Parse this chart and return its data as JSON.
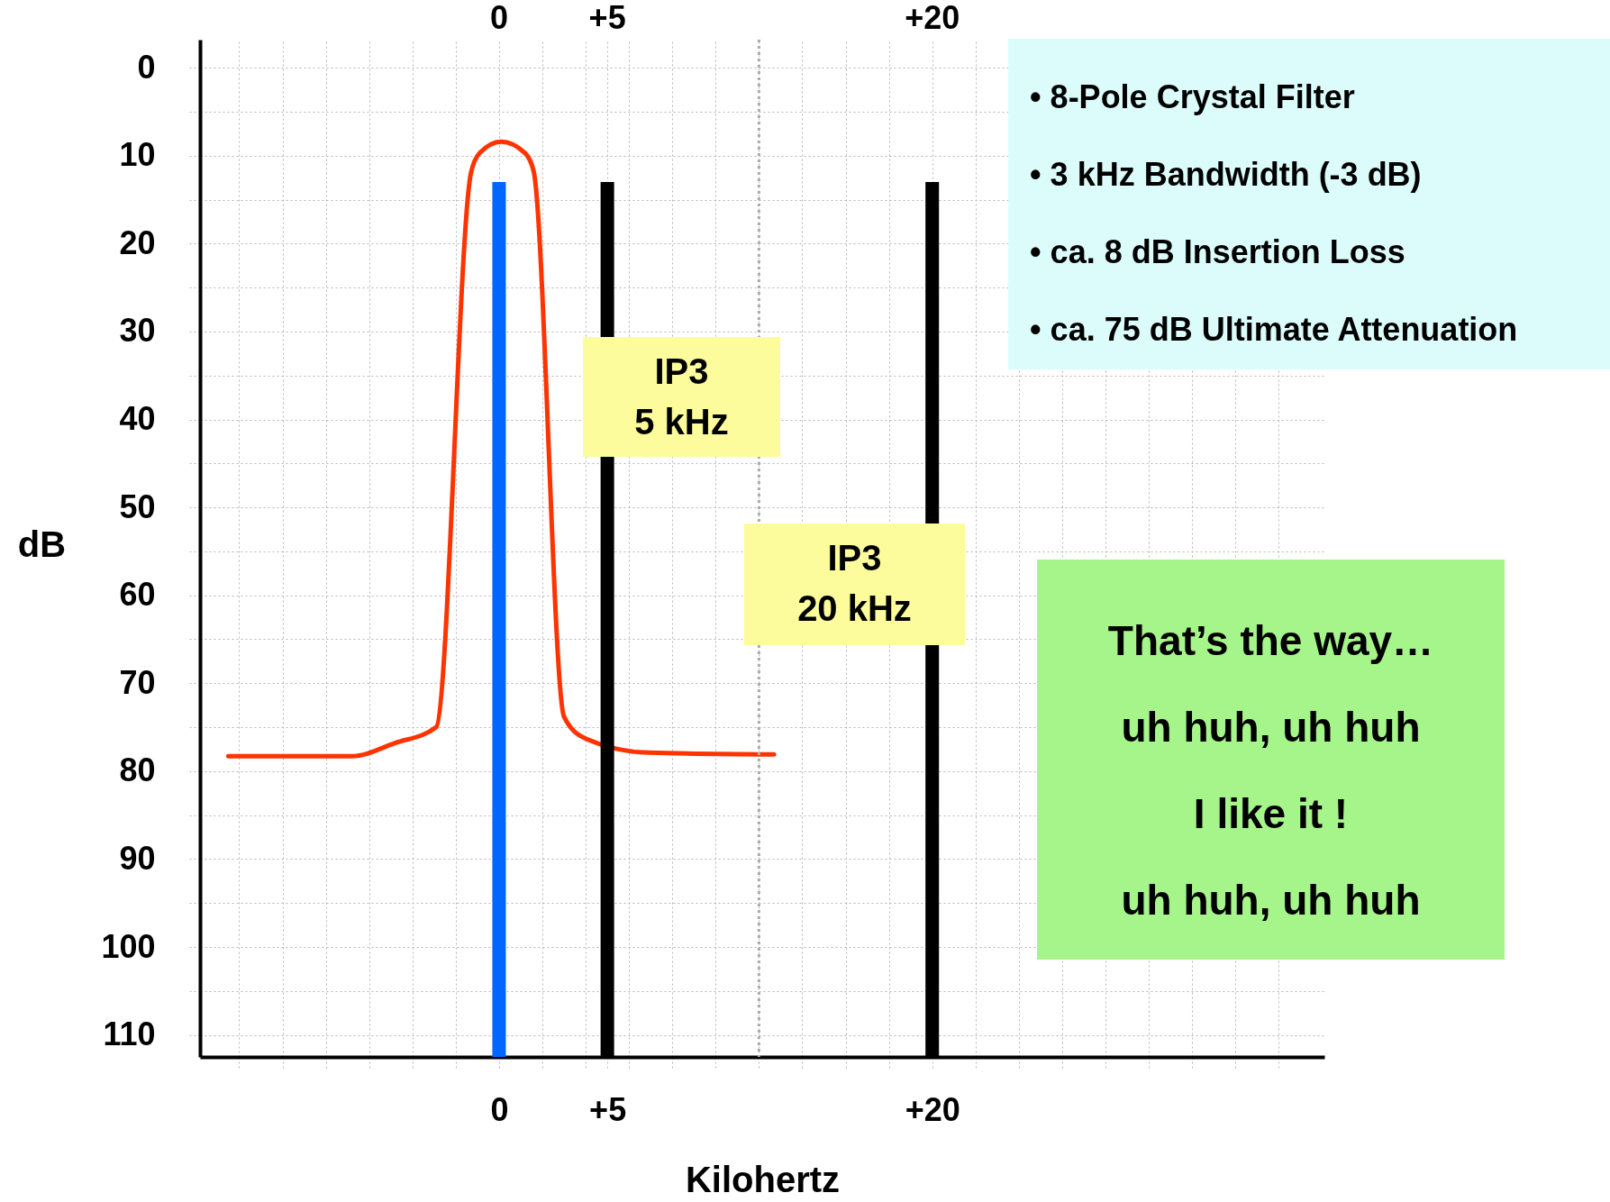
{
  "chart_data": {
    "type": "line",
    "xlabel": "Kilohertz",
    "ylabel": "dB",
    "xlim": [
      -13.6,
      37.9
    ],
    "xticks": [
      {
        "value": -12,
        "label": null
      },
      {
        "value": -10,
        "label": null
      },
      {
        "value": -8,
        "label": null
      },
      {
        "value": -6,
        "label": null
      },
      {
        "value": -4,
        "label": null
      },
      {
        "value": -2,
        "label": null
      },
      0,
      {
        "value": 2,
        "label": null
      },
      {
        "value": 4,
        "label": null
      },
      {
        "value": 5,
        "label": "+5"
      },
      {
        "value": 6,
        "label": null
      },
      {
        "value": 8,
        "label": null
      },
      {
        "value": 10,
        "label": null
      },
      {
        "value": 12,
        "label": null
      },
      {
        "value": 14,
        "label": null
      },
      {
        "value": 16,
        "label": null
      },
      {
        "value": 18,
        "label": null
      },
      {
        "value": 20,
        "label": "+20"
      },
      {
        "value": 22,
        "label": null
      },
      {
        "value": 24,
        "label": null
      },
      {
        "value": 26,
        "label": null
      },
      {
        "value": 28,
        "label": null
      },
      {
        "value": 30,
        "label": null
      },
      {
        "value": 32,
        "label": null
      },
      {
        "value": 34,
        "label": null
      },
      {
        "value": 36,
        "label": null
      }
    ],
    "x2lim": [
      -13.6,
      37.9
    ],
    "x2ticks": [
      0,
      {
        "value": 5,
        "label": "+5"
      },
      {
        "value": 20,
        "label": "+20"
      }
    ],
    "ylim": [
      112.5,
      -3.2
    ],
    "yticks": [
      0,
      {
        "value": 5,
        "label": null
      },
      10,
      {
        "value": 15,
        "label": null
      },
      20,
      {
        "value": 25,
        "label": null
      },
      30,
      {
        "value": 35,
        "label": null
      },
      40,
      {
        "value": 45,
        "label": null
      },
      50,
      {
        "value": 55,
        "label": null
      },
      60,
      {
        "value": 65,
        "label": null
      },
      70,
      {
        "value": 75,
        "label": null
      },
      80,
      {
        "value": 85,
        "label": null
      },
      90,
      {
        "value": 95,
        "label": null
      },
      100,
      {
        "value": 105,
        "label": null
      },
      110
    ],
    "grid": true,
    "marker": "none",
    "line_style": "solid",
    "series": [
      {
        "color": "#ff3300",
        "x": [
          -12.5,
          -6.8,
          -4.8,
          -2.9,
          -1.3,
          -0.9,
          0.1,
          1.2,
          1.6,
          3.0,
          4.0,
          6.9,
          12.7
        ],
        "values": [
          78.3,
          78.3,
          76.8,
          75.0,
          12.0,
          9.7,
          8.4,
          9.7,
          11.8,
          73.8,
          76.3,
          77.9,
          78.1
        ]
      },
      {
        "color": "#0066ff",
        "x": [
          0,
          0
        ],
        "values": [
          13,
          112.5
        ]
      },
      {
        "type": "bar",
        "color": "#000000",
        "x": [
          5,
          20
        ],
        "base": [
          13,
          13
        ],
        "values": [
          99.5,
          99.5
        ]
      }
    ],
    "ref_lines": [
      {
        "axis": "x",
        "value": 12,
        "color": "#aaaaaa",
        "line_style": "dotted"
      }
    ],
    "annotations": [
      "•  8-Pole  Crystal  Filter",
      "•  3  kHz  Bandwidth (-3 dB)",
      "•  ca. 8 dB  Insertion Loss",
      "•  ca. 75 dB Ultimate Attenuation",
      "IP3\n5 kHz",
      "IP3\n20 kHz",
      "That’s the way…",
      "uh huh, uh huh",
      "I like it !",
      "uh huh, uh huh"
    ]
  }
}
